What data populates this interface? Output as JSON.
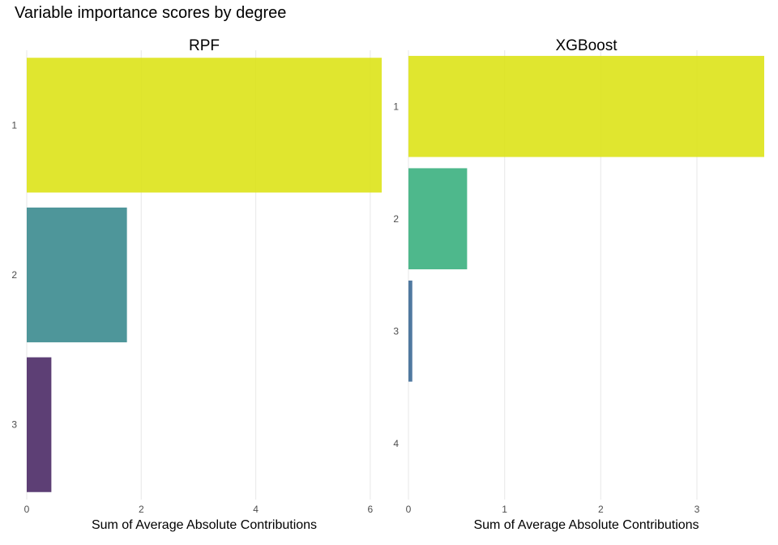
{
  "chart_data": {
    "type": "bar",
    "title": "Variable importance scores by degree",
    "orientation": "horizontal",
    "grid": true,
    "panels": [
      {
        "title": "RPF",
        "xlabel": "Sum of Average Absolute Contributions",
        "ylabel": "",
        "categories": [
          "1",
          "2",
          "3"
        ],
        "values": [
          6.2,
          1.75,
          0.43
        ],
        "colors": [
          "#dde318",
          "#3b8b8f",
          "#4b2a66"
        ],
        "xlim": [
          0,
          6.2
        ],
        "xticks": [
          0,
          2,
          4,
          6
        ]
      },
      {
        "title": "XGBoost",
        "xlabel": "Sum of Average Absolute Contributions",
        "ylabel": "",
        "categories": [
          "1",
          "2",
          "3",
          "4"
        ],
        "values": [
          3.7,
          0.61,
          0.04,
          0
        ],
        "colors": [
          "#dde318",
          "#3bb07f",
          "#3d6a96",
          "#440154"
        ],
        "xlim": [
          0,
          3.7
        ],
        "xticks": [
          0,
          1,
          2,
          3
        ]
      }
    ]
  }
}
